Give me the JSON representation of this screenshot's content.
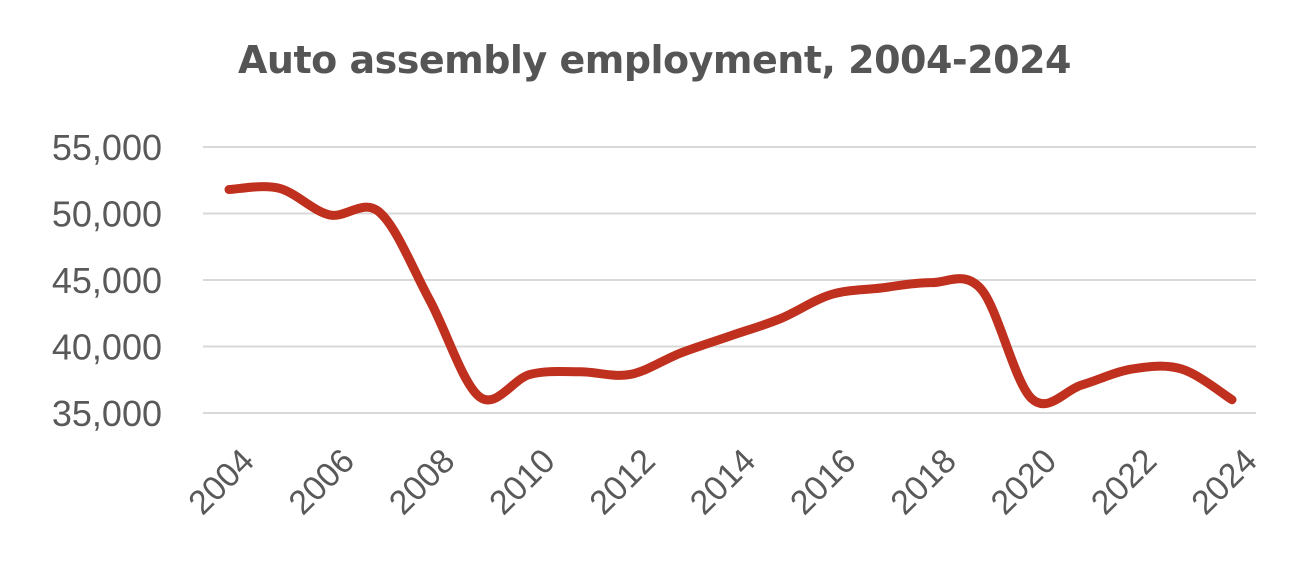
{
  "chart_data": {
    "type": "line",
    "title": "Auto assembly employment, 2004-2024",
    "xlabel": "",
    "ylabel": "",
    "ylim": [
      35000,
      55000
    ],
    "yticks": [
      35000,
      40000,
      45000,
      50000,
      55000
    ],
    "ytick_labels": [
      "35,000",
      "40,000",
      "45,000",
      "50,000",
      "55,000"
    ],
    "xlim": [
      2004,
      2024
    ],
    "xtick_labels": [
      "2004",
      "2006",
      "2008",
      "2010",
      "2012",
      "2014",
      "2016",
      "2018",
      "2020",
      "2022",
      "2024"
    ],
    "grid": true,
    "line_color": "#C0301E",
    "x": [
      2004,
      2005,
      2006,
      2007,
      2008,
      2009,
      2010,
      2011,
      2012,
      2013,
      2014,
      2015,
      2016,
      2017,
      2018,
      2019,
      2020,
      2021,
      2022,
      2023,
      2024
    ],
    "series": [
      {
        "values": [
          51800,
          51900,
          49900,
          50100,
          43500,
          36200,
          37900,
          38100,
          37900,
          39500,
          40800,
          42100,
          43900,
          44400,
          44800,
          44300,
          36100,
          37100,
          38300,
          38300,
          36000
        ]
      }
    ]
  }
}
